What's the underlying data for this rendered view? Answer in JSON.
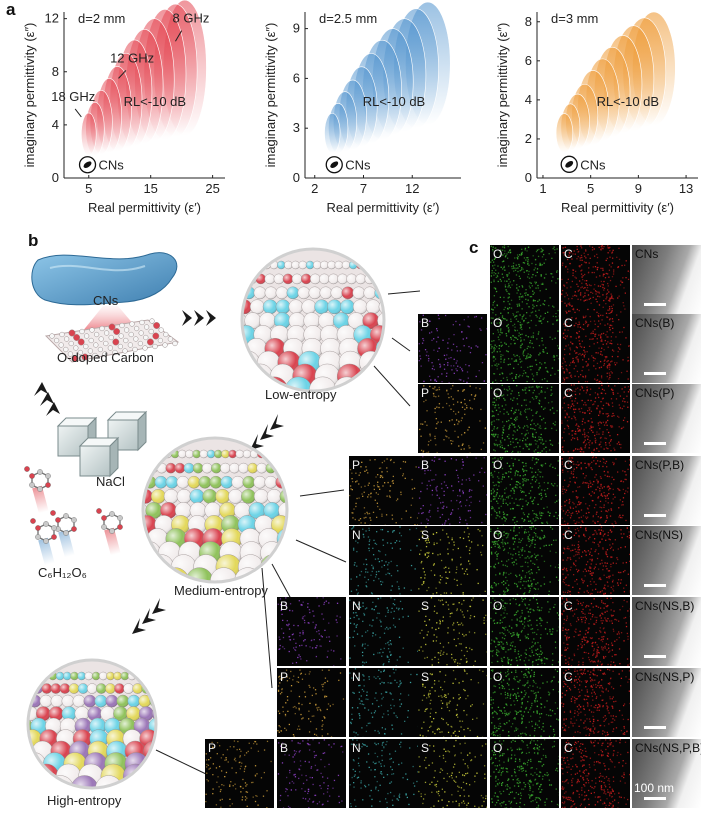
{
  "panel_letters": {
    "a": "a",
    "b": "b",
    "c": "c"
  },
  "colors": {
    "panel1": "#e3404c",
    "panel2": "#4a8fcc",
    "panel3": "#ee9a35"
  },
  "chart_data": [
    {
      "type": "scatter",
      "title": "d=2 mm",
      "xlabel": "Real permittivity (ε′)",
      "ylabel": "imaginary permittivity (ε″)",
      "xlim": [
        1,
        27
      ],
      "ylim": [
        0,
        12.5
      ],
      "xticks": [
        5,
        15,
        25
      ],
      "xtick_labels": [
        "5",
        "15",
        "25"
      ],
      "yticks": [
        0,
        4,
        8,
        12
      ],
      "ytick_labels": [
        "0",
        "4",
        "8",
        "12"
      ],
      "region_label": "RL<-10 dB",
      "annotations": [
        "8 GHz",
        "12 GHz",
        "18 GHz"
      ],
      "marker_label": "CNs",
      "marker_point": {
        "x": 4.8,
        "y": 1.0
      },
      "region_ellipses": [
        {
          "cx": 5.0,
          "cy": 3.3,
          "rx": 1.2,
          "ry": 1.6
        },
        {
          "cx": 6.0,
          "cy": 3.7,
          "rx": 1.5,
          "ry": 2.0
        },
        {
          "cx": 7.0,
          "cy": 4.2,
          "rx": 1.8,
          "ry": 2.4
        },
        {
          "cx": 8.3,
          "cy": 4.7,
          "rx": 2.0,
          "ry": 2.8
        },
        {
          "cx": 9.6,
          "cy": 5.2,
          "rx": 2.3,
          "ry": 3.2
        },
        {
          "cx": 11.0,
          "cy": 5.8,
          "rx": 2.6,
          "ry": 3.6
        },
        {
          "cx": 12.4,
          "cy": 6.4,
          "rx": 2.8,
          "ry": 4.0
        },
        {
          "cx": 14.0,
          "cy": 6.9,
          "rx": 3.0,
          "ry": 4.3
        },
        {
          "cx": 15.6,
          "cy": 7.4,
          "rx": 3.2,
          "ry": 4.6
        },
        {
          "cx": 17.3,
          "cy": 7.8,
          "rx": 3.4,
          "ry": 4.9
        },
        {
          "cx": 19.0,
          "cy": 8.1,
          "rx": 3.5,
          "ry": 5.0
        },
        {
          "cx": 20.5,
          "cy": 8.3,
          "rx": 3.5,
          "ry": 5.1
        }
      ]
    },
    {
      "type": "scatter",
      "title": "d=2.5 mm",
      "xlabel": "Real permittivity (ε′)",
      "ylabel": "imaginary permittivity (ε″)",
      "xlim": [
        1,
        17
      ],
      "ylim": [
        0,
        10
      ],
      "xticks": [
        2,
        7,
        12
      ],
      "xtick_labels": [
        "2",
        "7",
        "12"
      ],
      "yticks": [
        0,
        3,
        6,
        9
      ],
      "ytick_labels": [
        "0",
        "3",
        "6",
        "9"
      ],
      "region_label": "RL<-10 dB",
      "marker_label": "CNs",
      "marker_point": {
        "x": 4.0,
        "y": 0.8
      },
      "region_ellipses": [
        {
          "cx": 3.8,
          "cy": 2.7,
          "rx": 0.8,
          "ry": 1.2
        },
        {
          "cx": 4.4,
          "cy": 3.0,
          "rx": 1.0,
          "ry": 1.5
        },
        {
          "cx": 5.1,
          "cy": 3.4,
          "rx": 1.2,
          "ry": 1.8
        },
        {
          "cx": 5.9,
          "cy": 3.8,
          "rx": 1.4,
          "ry": 2.1
        },
        {
          "cx": 6.8,
          "cy": 4.3,
          "rx": 1.6,
          "ry": 2.4
        },
        {
          "cx": 7.8,
          "cy": 4.8,
          "rx": 1.8,
          "ry": 2.7
        },
        {
          "cx": 8.9,
          "cy": 5.3,
          "rx": 2.0,
          "ry": 3.0
        },
        {
          "cx": 10.0,
          "cy": 5.8,
          "rx": 2.1,
          "ry": 3.2
        },
        {
          "cx": 11.2,
          "cy": 6.2,
          "rx": 2.2,
          "ry": 3.4
        },
        {
          "cx": 12.4,
          "cy": 6.6,
          "rx": 2.3,
          "ry": 3.6
        },
        {
          "cx": 13.6,
          "cy": 6.9,
          "rx": 2.3,
          "ry": 3.7
        }
      ]
    },
    {
      "type": "scatter",
      "title": "d=3 mm",
      "xlabel": "Real permittivity (ε′)",
      "ylabel": "imaginary permittivity (ε″)",
      "xlim": [
        0.5,
        14
      ],
      "ylim": [
        0,
        8.5
      ],
      "xticks": [
        1,
        5,
        9,
        13
      ],
      "xtick_labels": [
        "1",
        "5",
        "9",
        "13"
      ],
      "yticks": [
        0,
        2,
        4,
        6,
        8
      ],
      "ytick_labels": [
        "0",
        "2",
        "4",
        "6",
        "8"
      ],
      "region_label": "RL<-10 dB",
      "marker_label": "CNs",
      "marker_point": {
        "x": 3.2,
        "y": 0.7
      },
      "region_ellipses": [
        {
          "cx": 2.8,
          "cy": 2.3,
          "rx": 0.7,
          "ry": 1.0
        },
        {
          "cx": 3.3,
          "cy": 2.6,
          "rx": 0.8,
          "ry": 1.2
        },
        {
          "cx": 3.9,
          "cy": 2.9,
          "rx": 1.0,
          "ry": 1.4
        },
        {
          "cx": 4.5,
          "cy": 3.2,
          "rx": 1.1,
          "ry": 1.6
        },
        {
          "cx": 5.2,
          "cy": 3.6,
          "rx": 1.3,
          "ry": 1.9
        },
        {
          "cx": 6.0,
          "cy": 4.0,
          "rx": 1.4,
          "ry": 2.1
        },
        {
          "cx": 6.8,
          "cy": 4.4,
          "rx": 1.5,
          "ry": 2.3
        },
        {
          "cx": 7.7,
          "cy": 4.8,
          "rx": 1.6,
          "ry": 2.5
        },
        {
          "cx": 8.6,
          "cy": 5.1,
          "rx": 1.7,
          "ry": 2.7
        },
        {
          "cx": 9.5,
          "cy": 5.4,
          "rx": 1.8,
          "ry": 2.8
        },
        {
          "cx": 10.3,
          "cy": 5.6,
          "rx": 1.8,
          "ry": 2.9
        }
      ]
    }
  ],
  "schematic": {
    "cns_label": "CNs",
    "o_doped_label": "O-doped Carbon",
    "nacl_label": "NaCl",
    "glucose_label": "C₆H₁₂O₆",
    "low_entropy_label": "Low-entropy",
    "medium_entropy_label": "Medium-entropy",
    "high_entropy_label": "High-entropy",
    "atom_colors": {
      "carbon": "#e9e0e0",
      "oxygen": "#d9434f",
      "boron": "#9b76b7",
      "phosphorus": "#6bd3e6",
      "nitrogen": "#8fc25b",
      "sulfur": "#e3d85a"
    }
  },
  "mapping": {
    "scale_label": "100 nm",
    "element_colors": {
      "O": "#39a82e",
      "C": "#c41d1d",
      "B": "#8a3fc0",
      "P": "#c89a3a",
      "N": "#3aa3a3",
      "S": "#c7c93a"
    },
    "rows": [
      {
        "name": "CNs",
        "elements": [
          "O",
          "C"
        ]
      },
      {
        "name": "CNs(B)",
        "elements": [
          "B",
          "O",
          "C"
        ]
      },
      {
        "name": "CNs(P)",
        "elements": [
          "P",
          "O",
          "C"
        ]
      },
      {
        "name": "CNs(P,B)",
        "elements": [
          "P",
          "B",
          "O",
          "C"
        ]
      },
      {
        "name": "CNs(NS)",
        "elements": [
          "N",
          "S",
          "O",
          "C"
        ]
      },
      {
        "name": "CNs(NS,B)",
        "elements": [
          "B",
          "N",
          "S",
          "O",
          "C"
        ]
      },
      {
        "name": "CNs(NS,P)",
        "elements": [
          "P",
          "N",
          "S",
          "O",
          "C"
        ]
      },
      {
        "name": "CNs(NS,P,B)",
        "elements": [
          "P",
          "B",
          "N",
          "S",
          "O",
          "C"
        ]
      }
    ]
  }
}
